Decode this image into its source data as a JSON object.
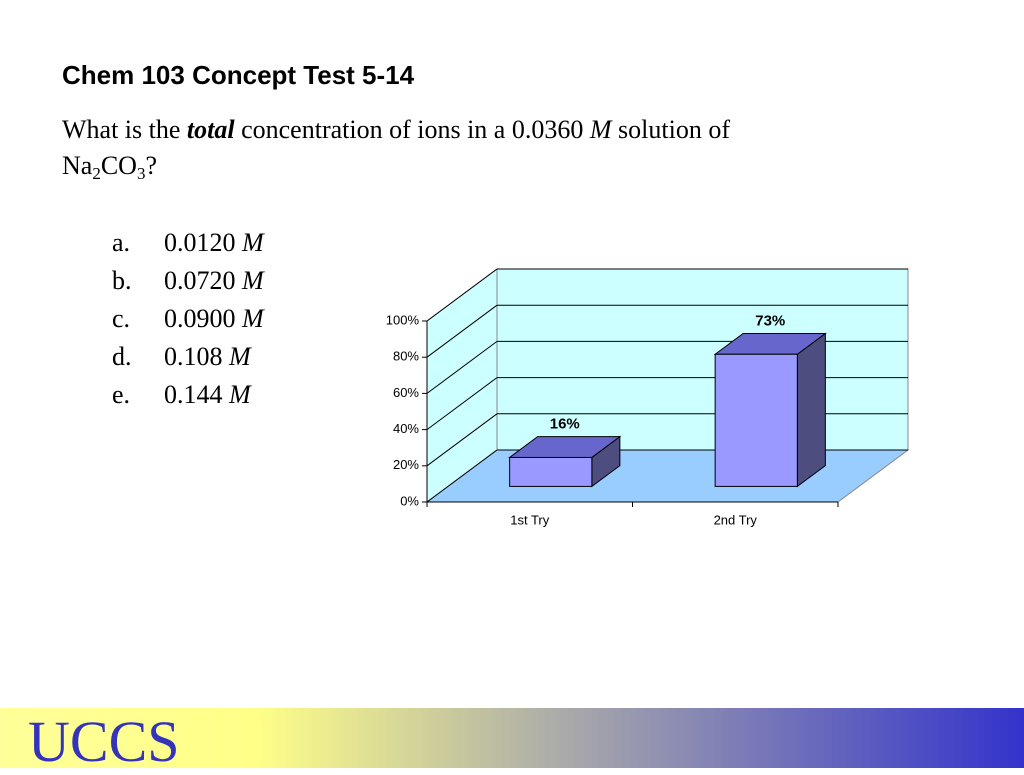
{
  "title": "Chem 103 Concept Test 5-14",
  "question": {
    "before": "What is the",
    "emphasis": "total",
    "middle": "concentration of ions in a 0.0360",
    "unit": "M",
    "after": "solution of",
    "formula": [
      "Na",
      "2",
      "CO",
      "3",
      "?"
    ]
  },
  "options": [
    {
      "letter": "a.",
      "value": "0.0120",
      "unit": "M"
    },
    {
      "letter": "b.",
      "value": "0.0720",
      "unit": "M"
    },
    {
      "letter": "c.",
      "value": "0.0900",
      "unit": "M"
    },
    {
      "letter": "d.",
      "value": "0.108",
      "unit": "M"
    },
    {
      "letter": "e.",
      "value": "0.144",
      "unit": "M"
    }
  ],
  "chart_data": {
    "type": "bar3d",
    "categories": [
      "1st Try",
      "2nd Try"
    ],
    "values": [
      16,
      73
    ],
    "value_labels": [
      "16%",
      "73%"
    ],
    "color": "#9999ff",
    "ylim": [
      0,
      100
    ],
    "yticks": [
      {
        "value": 0,
        "label": "0%"
      },
      {
        "value": 20,
        "label": "20%"
      },
      {
        "value": 40,
        "label": "40%"
      },
      {
        "value": 60,
        "label": "60%"
      },
      {
        "value": 80,
        "label": "80%"
      },
      {
        "value": 100,
        "label": "100%"
      }
    ],
    "grid": true
  },
  "footer": {
    "logo": "UCCS"
  }
}
